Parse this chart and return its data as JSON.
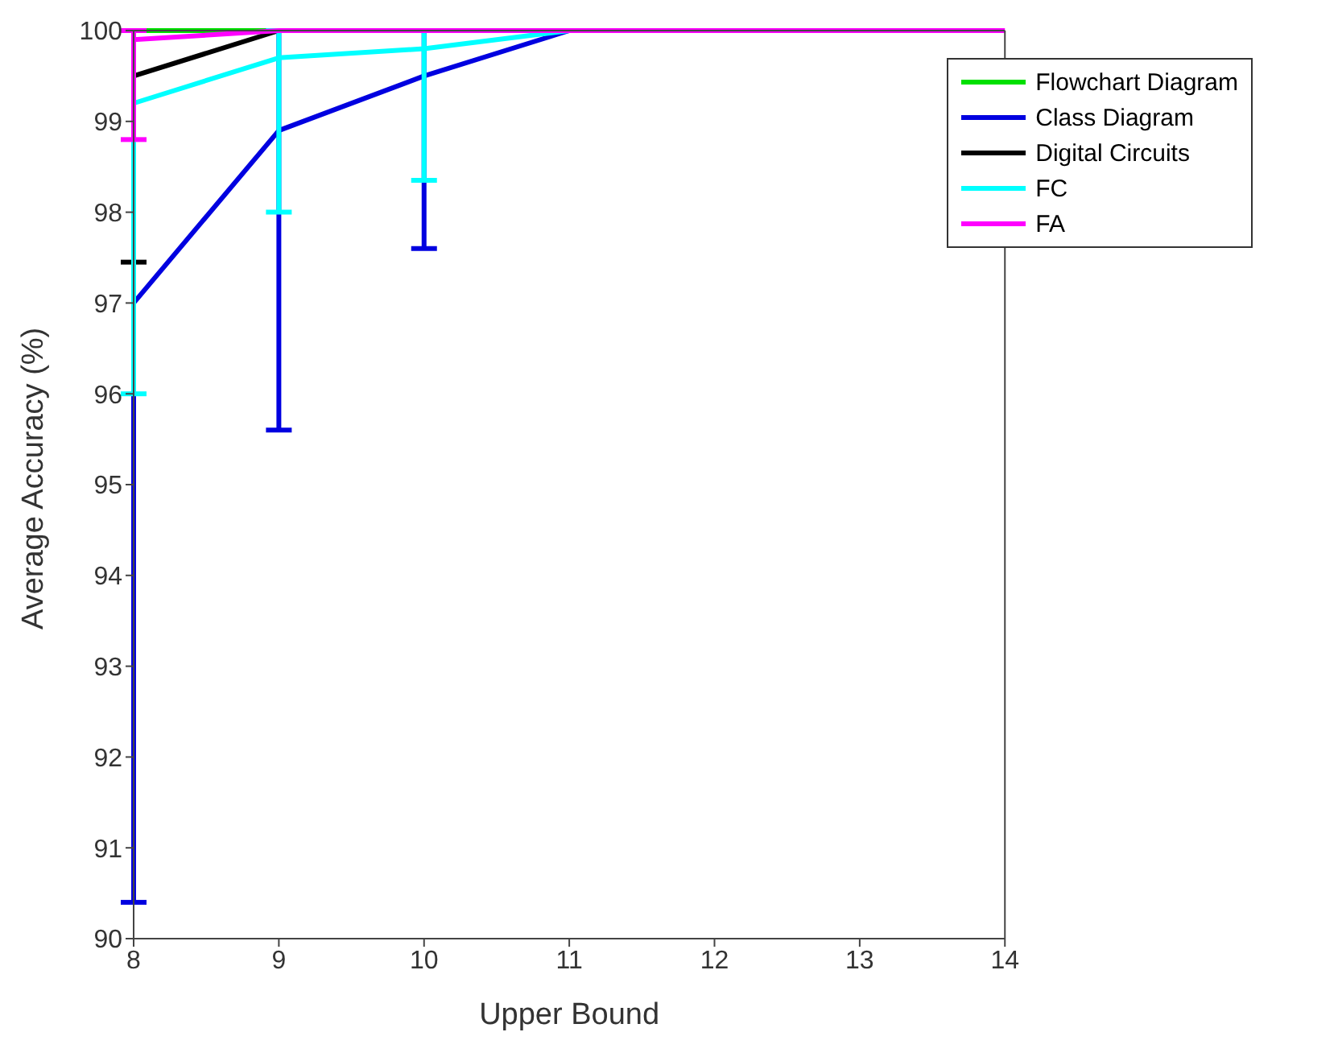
{
  "chart_data": {
    "type": "line",
    "xlabel": "Upper Bound",
    "ylabel": "Average Accuracy (%)",
    "x": [
      8,
      9,
      10,
      11,
      12,
      13,
      14
    ],
    "series": [
      {
        "name": "Flowchart Diagram",
        "color": "#00e000",
        "values": [
          100,
          100,
          null,
          null,
          null,
          null,
          null
        ]
      },
      {
        "name": "Class Diagram",
        "color": "#0000e0",
        "values": [
          97.0,
          98.9,
          99.5,
          100,
          null,
          null,
          null
        ],
        "errors": [
          [
            90.4,
            100
          ],
          [
            95.6,
            100
          ],
          [
            97.6,
            100
          ],
          null,
          null,
          null,
          null
        ]
      },
      {
        "name": "Digital Circuits",
        "color": "#000000",
        "values": [
          99.5,
          100,
          null,
          null,
          null,
          null,
          null
        ],
        "errors": [
          [
            97.45,
            100
          ],
          null,
          null,
          null,
          null,
          null,
          null
        ]
      },
      {
        "name": "FC",
        "color": "#00ffff",
        "values": [
          99.2,
          99.7,
          99.8,
          100,
          null,
          null,
          null
        ],
        "errors": [
          [
            96.0,
            100
          ],
          [
            98.0,
            100
          ],
          [
            98.35,
            100
          ],
          null,
          null,
          null,
          null
        ]
      },
      {
        "name": "FA",
        "color": "#ff00ff",
        "values": [
          99.9,
          100,
          100,
          100,
          100,
          100,
          100
        ],
        "errors": [
          [
            98.8,
            100
          ],
          null,
          null,
          null,
          null,
          null,
          null
        ]
      }
    ],
    "xlim": [
      8,
      14
    ],
    "xticks": [
      8,
      9,
      10,
      11,
      12,
      13,
      14
    ],
    "ylim": [
      90,
      100
    ],
    "yticks": [
      90,
      91,
      92,
      93,
      94,
      95,
      96,
      97,
      98,
      99,
      100
    ],
    "grid": false,
    "legend": "top right",
    "marker": "none",
    "line_style": "solid"
  }
}
